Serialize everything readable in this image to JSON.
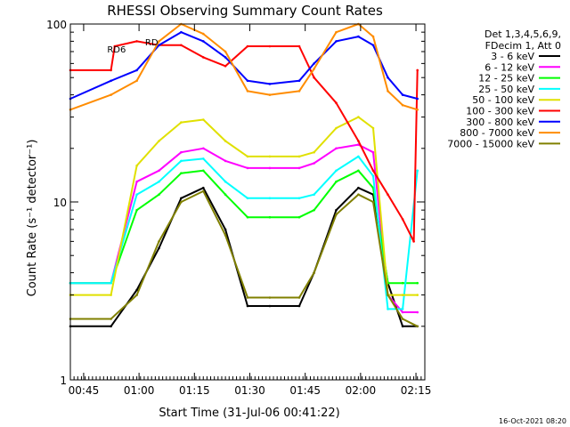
{
  "chart_data": {
    "type": "line",
    "title": "RHESSI Observing Summary Count Rates",
    "xlabel": "Start Time (31-Jul-06 00:41:22)",
    "ylabel": "Count Rate (s⁻¹ detector⁻¹)",
    "yscale": "log",
    "ylim": [
      1,
      100
    ],
    "xlim_minutes": [
      0,
      96
    ],
    "x_unit": "minutes after 00:41:22",
    "x_ticks": [
      {
        "label": "00:45",
        "t": 3.6
      },
      {
        "label": "01:00",
        "t": 18.6
      },
      {
        "label": "01:15",
        "t": 33.6
      },
      {
        "label": "01:30",
        "t": 48.6
      },
      {
        "label": "01:45",
        "t": 63.6
      },
      {
        "label": "02:00",
        "t": 78.6
      },
      {
        "label": "02:15",
        "t": 93.6
      }
    ],
    "y_ticks": [
      {
        "label": "1",
        "v": 1
      },
      {
        "label": "10",
        "v": 10
      },
      {
        "label": "100",
        "v": 100
      }
    ],
    "legend_header": [
      "Det 1,3,4,5,6,9,",
      "FDecim 1, Att 0"
    ],
    "legend_position": "right",
    "footer_date": "16-Oct-2021 08:20",
    "annotations": [
      {
        "text": "RD6",
        "t": 12.5,
        "v": 69
      },
      {
        "text": "RD",
        "t": 22.0,
        "v": 76
      }
    ],
    "series": [
      {
        "name": "3 - 6 keV",
        "color": "#000000",
        "t": [
          0,
          11,
          18,
          24,
          30,
          36,
          42,
          48,
          54,
          62,
          66,
          72,
          78,
          82,
          86,
          90,
          94
        ],
        "v": [
          2.0,
          2.0,
          3.2,
          5.5,
          10.5,
          12,
          7.0,
          2.6,
          2.6,
          2.6,
          4.0,
          9.0,
          12,
          11,
          3.5,
          2.0,
          2.0
        ]
      },
      {
        "name": "6 - 12 keV",
        "color": "#ff00ff",
        "t": [
          0,
          11,
          18,
          24,
          30,
          36,
          42,
          48,
          54,
          62,
          66,
          72,
          78,
          82,
          86,
          90,
          94
        ],
        "v": [
          3.5,
          3.5,
          13,
          15,
          19,
          20,
          17,
          15.5,
          15.5,
          15.5,
          16.5,
          20,
          21,
          19,
          3.0,
          2.4,
          2.4
        ]
      },
      {
        "name": "12 - 25 keV",
        "color": "#00ff00",
        "t": [
          0,
          11,
          18,
          24,
          30,
          36,
          42,
          48,
          54,
          62,
          66,
          72,
          78,
          82,
          86,
          90,
          94
        ],
        "v": [
          3.5,
          3.5,
          9.0,
          11,
          14.5,
          15,
          11,
          8.2,
          8.2,
          8.2,
          9.0,
          13,
          15,
          12,
          3.5,
          3.5,
          3.5
        ]
      },
      {
        "name": "25 - 50 keV",
        "color": "#00ffff",
        "t": [
          0,
          11,
          18,
          24,
          30,
          36,
          42,
          48,
          54,
          62,
          66,
          72,
          78,
          82,
          86,
          90,
          94
        ],
        "v": [
          3.5,
          3.5,
          11,
          13,
          17,
          17.5,
          13,
          10.5,
          10.5,
          10.5,
          11,
          15,
          18,
          14,
          2.5,
          2.5,
          15
        ]
      },
      {
        "name": "50 - 100 keV",
        "color": "#e0e000",
        "t": [
          0,
          11,
          18,
          24,
          30,
          36,
          42,
          48,
          54,
          62,
          66,
          72,
          78,
          82,
          86,
          90,
          94
        ],
        "v": [
          3.0,
          3.0,
          16,
          22,
          28,
          29,
          22,
          18,
          18,
          18,
          19,
          26,
          30,
          26,
          3.0,
          3.0,
          3.0
        ]
      },
      {
        "name": "100 - 300 keV",
        "color": "#ff0000",
        "t": [
          0,
          11,
          12,
          18,
          24,
          30,
          36,
          42,
          48,
          54,
          62,
          66,
          72,
          78,
          82,
          86,
          90,
          93,
          94
        ],
        "v": [
          55,
          55,
          75,
          80,
          76,
          76,
          65,
          58,
          75,
          75,
          75,
          50,
          36,
          22,
          15,
          11,
          8.0,
          6.0,
          55
        ]
      },
      {
        "name": "300 - 800 keV",
        "color": "#0000ff",
        "t": [
          0,
          11,
          18,
          24,
          30,
          36,
          42,
          48,
          54,
          62,
          66,
          72,
          78,
          82,
          86,
          90,
          94
        ],
        "v": [
          38,
          48,
          55,
          76,
          90,
          80,
          65,
          48,
          46,
          48,
          60,
          80,
          85,
          76,
          50,
          40,
          38
        ]
      },
      {
        "name": "800 - 7000 keV",
        "color": "#ff8c00",
        "t": [
          0,
          11,
          18,
          24,
          30,
          36,
          42,
          48,
          54,
          62,
          66,
          72,
          78,
          82,
          86,
          90,
          94
        ],
        "v": [
          33,
          40,
          48,
          80,
          100,
          88,
          70,
          42,
          40,
          42,
          56,
          90,
          100,
          85,
          42,
          35,
          33
        ]
      },
      {
        "name": "7000 - 15000 keV",
        "color": "#808000",
        "t": [
          0,
          11,
          18,
          24,
          30,
          36,
          42,
          48,
          54,
          62,
          66,
          72,
          78,
          82,
          86,
          90,
          94
        ],
        "v": [
          2.2,
          2.2,
          3.0,
          6.0,
          10,
          11.5,
          6.5,
          2.9,
          2.9,
          2.9,
          4.0,
          8.5,
          11,
          10,
          3.0,
          2.2,
          2.0
        ]
      }
    ]
  }
}
